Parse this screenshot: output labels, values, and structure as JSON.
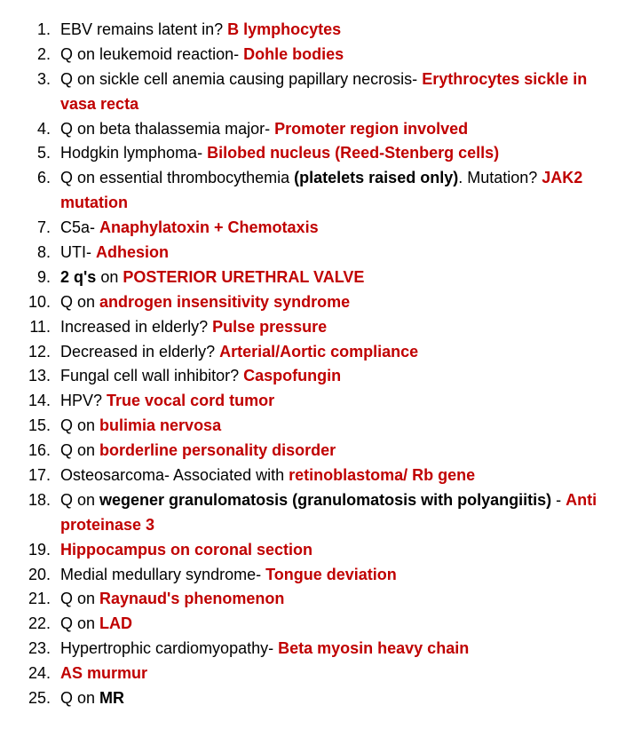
{
  "colors": {
    "text": "#000000",
    "accent": "#c00000",
    "background": "#ffffff"
  },
  "font": {
    "family": "Arial",
    "size_pt": 14,
    "line_height": 1.55
  },
  "items": [
    {
      "n": 1,
      "segs": [
        [
          "EBV remains latent in? ",
          "n"
        ],
        [
          "B lymphocytes",
          "r"
        ]
      ]
    },
    {
      "n": 2,
      "segs": [
        [
          "Q on leukemoid reaction- ",
          "n"
        ],
        [
          "Dohle bodies",
          "r"
        ]
      ]
    },
    {
      "n": 3,
      "segs": [
        [
          "Q on sickle cell anemia causing papillary necrosis- ",
          "n"
        ],
        [
          "Erythrocytes sickle in vasa recta",
          "r"
        ]
      ]
    },
    {
      "n": 4,
      "segs": [
        [
          "Q on beta thalassemia major- ",
          "n"
        ],
        [
          "Promoter region involved",
          "r"
        ]
      ]
    },
    {
      "n": 5,
      "segs": [
        [
          "Hodgkin lymphoma- ",
          "n"
        ],
        [
          "Bilobed nucleus (Reed-Stenberg cells)",
          "r"
        ]
      ]
    },
    {
      "n": 6,
      "segs": [
        [
          "Q on essential thrombocythemia ",
          "n"
        ],
        [
          "(platelets raised only)",
          "b"
        ],
        [
          ". Mutation? ",
          "n"
        ],
        [
          "JAK2 mutation",
          "r"
        ]
      ]
    },
    {
      "n": 7,
      "segs": [
        [
          "C5a- ",
          "n"
        ],
        [
          "Anaphylatoxin + Chemotaxis",
          "r"
        ]
      ]
    },
    {
      "n": 8,
      "segs": [
        [
          "UTI- ",
          "n"
        ],
        [
          "Adhesion",
          "r"
        ]
      ]
    },
    {
      "n": 9,
      "segs": [
        [
          "2 q's",
          "b"
        ],
        [
          " on ",
          "n"
        ],
        [
          "POSTERIOR URETHRAL VALVE",
          "r"
        ]
      ]
    },
    {
      "n": 10,
      "segs": [
        [
          "Q on ",
          "n"
        ],
        [
          "androgen insensitivity syndrome",
          "r"
        ]
      ]
    },
    {
      "n": 11,
      "segs": [
        [
          "Increased in elderly? ",
          "n"
        ],
        [
          "Pulse pressure",
          "r"
        ]
      ]
    },
    {
      "n": 12,
      "segs": [
        [
          "Decreased in elderly? ",
          "n"
        ],
        [
          "Arterial/Aortic compliance",
          "r"
        ]
      ]
    },
    {
      "n": 13,
      "segs": [
        [
          "Fungal cell wall inhibitor? ",
          "n"
        ],
        [
          "Caspofungin",
          "r"
        ]
      ]
    },
    {
      "n": 14,
      "segs": [
        [
          "HPV? ",
          "n"
        ],
        [
          "True vocal cord tumor",
          "r"
        ]
      ]
    },
    {
      "n": 15,
      "segs": [
        [
          "Q on ",
          "n"
        ],
        [
          "bulimia nervosa",
          "r"
        ]
      ]
    },
    {
      "n": 16,
      "segs": [
        [
          "Q on ",
          "n"
        ],
        [
          "borderline personality disorder",
          "r"
        ]
      ]
    },
    {
      "n": 17,
      "segs": [
        [
          "Osteosarcoma- Associated with ",
          "n"
        ],
        [
          "retinoblastoma/ Rb gene",
          "r"
        ]
      ]
    },
    {
      "n": 18,
      "segs": [
        [
          "Q on ",
          "n"
        ],
        [
          "wegener granulomatosis (granulomatosis with polyangiitis) ",
          "b"
        ],
        [
          "- ",
          "n"
        ],
        [
          "Anti proteinase 3",
          "r"
        ]
      ]
    },
    {
      "n": 19,
      "segs": [
        [
          "Hippocampus on coronal section",
          "r"
        ]
      ]
    },
    {
      "n": 20,
      "segs": [
        [
          "Medial medullary syndrome- ",
          "n"
        ],
        [
          "Tongue deviation",
          "r"
        ]
      ]
    },
    {
      "n": 21,
      "segs": [
        [
          "Q on ",
          "n"
        ],
        [
          "Raynaud's phenomenon",
          "r"
        ]
      ]
    },
    {
      "n": 22,
      "segs": [
        [
          "Q on ",
          "n"
        ],
        [
          "LAD",
          "r"
        ]
      ]
    },
    {
      "n": 23,
      "segs": [
        [
          "Hypertrophic cardiomyopathy- ",
          "n"
        ],
        [
          "Beta myosin heavy chain",
          "r"
        ]
      ]
    },
    {
      "n": 24,
      "segs": [
        [
          "AS murmur",
          "r"
        ]
      ]
    },
    {
      "n": 25,
      "segs": [
        [
          "Q on ",
          "n"
        ],
        [
          "MR",
          "b"
        ]
      ]
    }
  ]
}
